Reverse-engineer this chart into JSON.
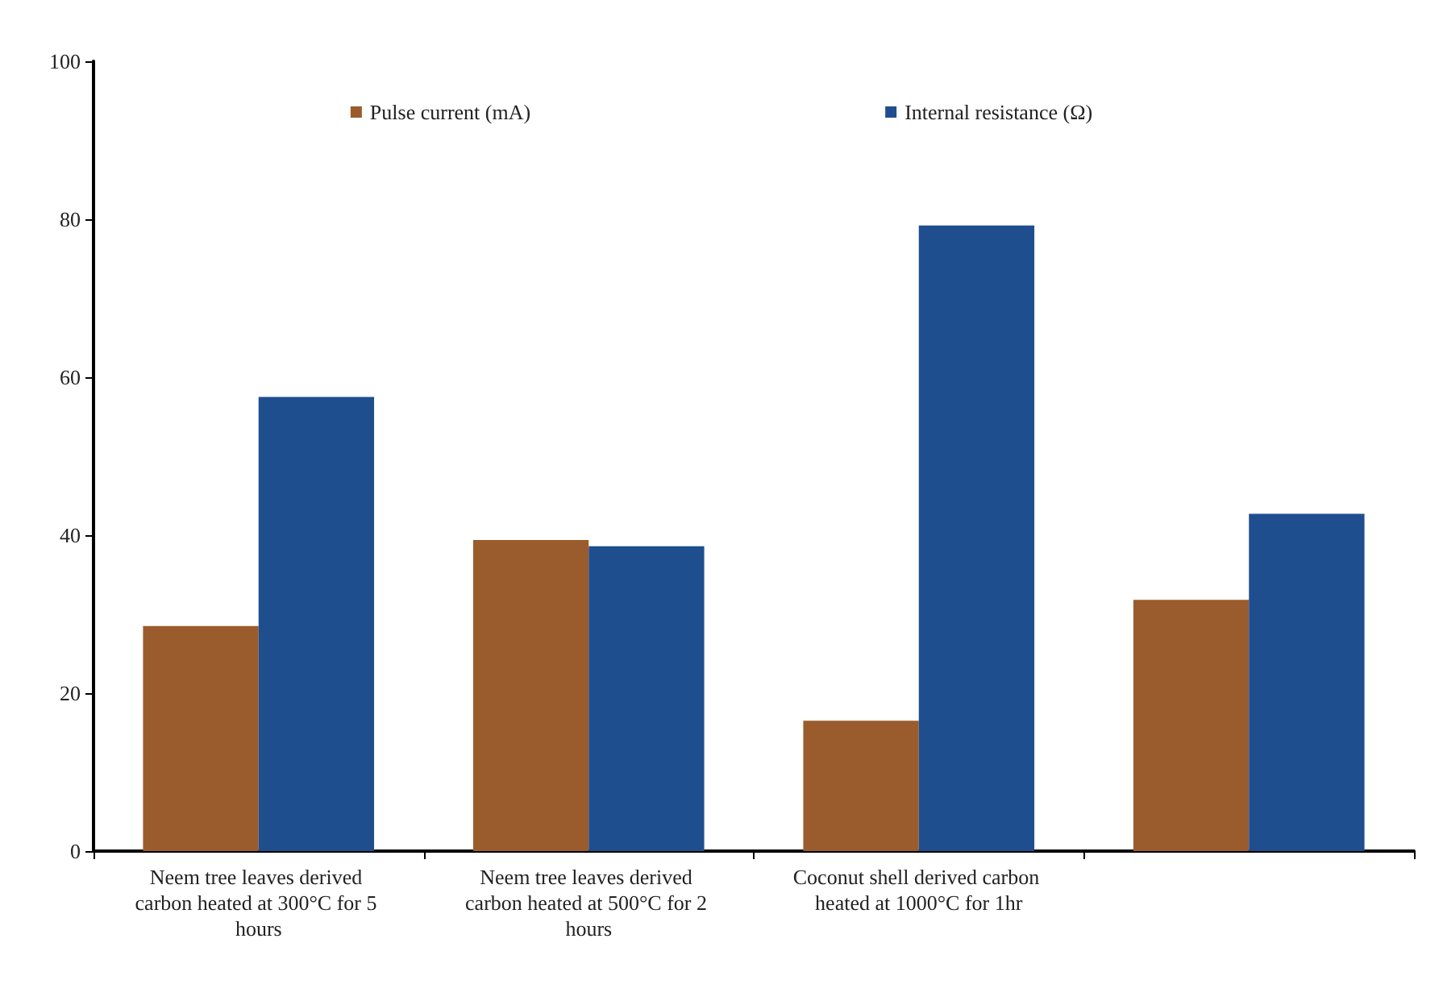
{
  "chart_data": {
    "type": "bar",
    "categories": [
      "Neem tree leaves derived carbon heated at 300°C for 5 hours",
      "Neem tree leaves derived carbon heated at 500°C for 2 hours",
      "Coconut shell derived carbon heated at 1000°C for 1hr",
      null
    ],
    "series": [
      {
        "name": "Pulse current (mA)",
        "color": "#9a5c2c",
        "values": [
          28.5,
          39.4,
          16.5,
          31.8
        ]
      },
      {
        "name": "Internal resistance (Ω)",
        "color": "#1f4e8f",
        "values": [
          57.5,
          38.6,
          79.2,
          42.7
        ]
      }
    ],
    "ylim": [
      0,
      100
    ],
    "yticks": [
      0,
      20,
      40,
      60,
      80,
      100
    ],
    "grid": false,
    "legend": "top"
  }
}
